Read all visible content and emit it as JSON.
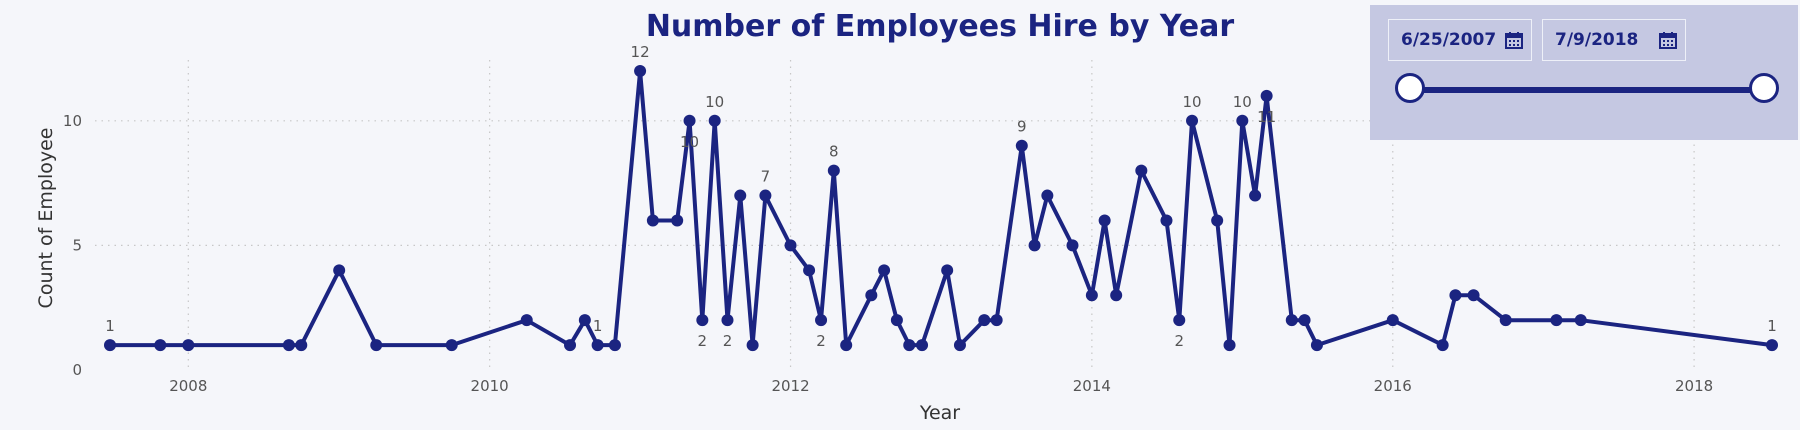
{
  "chart_data": {
    "type": "line",
    "title": "Number of Employees Hire by Year",
    "xlabel": "Year",
    "ylabel": "Count of Employee",
    "x_range": [
      "2007-06-25",
      "2018-07-09"
    ],
    "ylim": [
      0,
      12.6
    ],
    "x_ticks": [
      "2008",
      "2010",
      "2012",
      "2014",
      "2016",
      "2018"
    ],
    "y_ticks": [
      0,
      5,
      10
    ],
    "grid": true,
    "line_color": "#1b2481",
    "points": [
      {
        "date": "2007-06-25",
        "value": 1,
        "label": "1"
      },
      {
        "date": "2007-10-25",
        "value": 1
      },
      {
        "date": "2008-01-01",
        "value": 1
      },
      {
        "date": "2008-09-01",
        "value": 1
      },
      {
        "date": "2008-10-01",
        "value": 1
      },
      {
        "date": "2009-01-01",
        "value": 4
      },
      {
        "date": "2009-04-01",
        "value": 1
      },
      {
        "date": "2009-10-01",
        "value": 1
      },
      {
        "date": "2010-04-01",
        "value": 2
      },
      {
        "date": "2010-07-15",
        "value": 1
      },
      {
        "date": "2010-08-20",
        "value": 2
      },
      {
        "date": "2010-09-20",
        "value": 1,
        "label": "1"
      },
      {
        "date": "2010-11-01",
        "value": 1
      },
      {
        "date": "2011-01-01",
        "value": 12,
        "label": "12"
      },
      {
        "date": "2011-02-01",
        "value": 6
      },
      {
        "date": "2011-04-01",
        "value": 6
      },
      {
        "date": "2011-05-01",
        "value": 10,
        "label": "10",
        "label_pos": "below"
      },
      {
        "date": "2011-06-01",
        "value": 2,
        "label": "2",
        "label_pos": "below"
      },
      {
        "date": "2011-07-01",
        "value": 10,
        "label": "10"
      },
      {
        "date": "2011-08-01",
        "value": 2,
        "label": "2",
        "label_pos": "below"
      },
      {
        "date": "2011-09-01",
        "value": 7
      },
      {
        "date": "2011-10-01",
        "value": 1
      },
      {
        "date": "2011-11-01",
        "value": 7,
        "label": "7"
      },
      {
        "date": "2012-01-01",
        "value": 5
      },
      {
        "date": "2012-02-15",
        "value": 4
      },
      {
        "date": "2012-03-15",
        "value": 2,
        "label": "2",
        "label_pos": "below"
      },
      {
        "date": "2012-04-15",
        "value": 8,
        "label": "8"
      },
      {
        "date": "2012-05-15",
        "value": 1
      },
      {
        "date": "2012-07-15",
        "value": 3
      },
      {
        "date": "2012-08-15",
        "value": 4
      },
      {
        "date": "2012-09-15",
        "value": 2
      },
      {
        "date": "2012-10-15",
        "value": 1
      },
      {
        "date": "2012-11-15",
        "value": 1
      },
      {
        "date": "2013-01-15",
        "value": 4
      },
      {
        "date": "2013-02-15",
        "value": 1
      },
      {
        "date": "2013-04-15",
        "value": 2
      },
      {
        "date": "2013-05-15",
        "value": 2
      },
      {
        "date": "2013-07-15",
        "value": 9,
        "label": "9"
      },
      {
        "date": "2013-08-15",
        "value": 5
      },
      {
        "date": "2013-09-15",
        "value": 7
      },
      {
        "date": "2013-11-15",
        "value": 5
      },
      {
        "date": "2014-01-01",
        "value": 3
      },
      {
        "date": "2014-02-01",
        "value": 6
      },
      {
        "date": "2014-03-01",
        "value": 3
      },
      {
        "date": "2014-05-01",
        "value": 8
      },
      {
        "date": "2014-07-01",
        "value": 6
      },
      {
        "date": "2014-08-01",
        "value": 2,
        "label": "2",
        "label_pos": "below"
      },
      {
        "date": "2014-09-01",
        "value": 10,
        "label": "10"
      },
      {
        "date": "2014-11-01",
        "value": 6
      },
      {
        "date": "2014-12-01",
        "value": 1
      },
      {
        "date": "2015-01-01",
        "value": 10,
        "label": "10"
      },
      {
        "date": "2015-02-01",
        "value": 7
      },
      {
        "date": "2015-03-01",
        "value": 11,
        "label": "11",
        "label_pos": "below"
      },
      {
        "date": "2015-05-01",
        "value": 2
      },
      {
        "date": "2015-06-01",
        "value": 2
      },
      {
        "date": "2015-07-01",
        "value": 1
      },
      {
        "date": "2016-01-01",
        "value": 2
      },
      {
        "date": "2016-05-01",
        "value": 1
      },
      {
        "date": "2016-06-01",
        "value": 3
      },
      {
        "date": "2016-07-15",
        "value": 3
      },
      {
        "date": "2016-10-01",
        "value": 2
      },
      {
        "date": "2017-02-01",
        "value": 2
      },
      {
        "date": "2017-04-01",
        "value": 2
      },
      {
        "date": "2018-07-09",
        "value": 1,
        "label": "1"
      }
    ]
  },
  "slicer": {
    "start_date": "6/25/2007",
    "end_date": "7/9/2018",
    "start_fraction": 0,
    "end_fraction": 1
  },
  "icons": {
    "calendar": "calendar-icon",
    "slider_handle": "slider-handle-icon"
  }
}
